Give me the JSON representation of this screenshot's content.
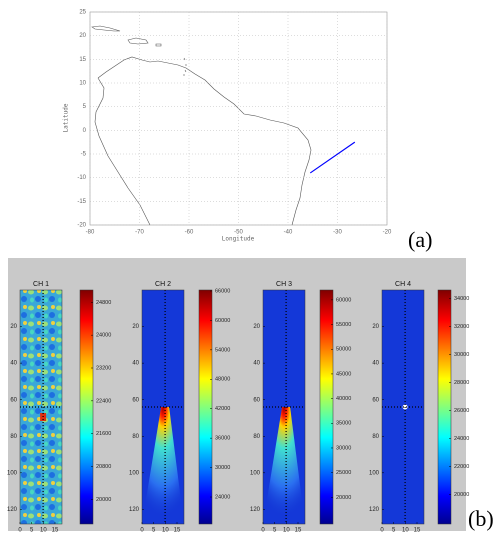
{
  "figure_labels": [
    "(a)",
    "(b)"
  ],
  "chart_data": [
    {
      "type": "line",
      "xlabel": "Longitude",
      "ylabel": "Latitude",
      "xlim": [
        -80,
        -20
      ],
      "xticks": [
        -80,
        -70,
        -60,
        -50,
        -40,
        -30,
        -20
      ],
      "ylim": [
        -20,
        25
      ],
      "yticks": [
        -20,
        -15,
        -10,
        -5,
        0,
        5,
        10,
        15,
        20,
        25
      ],
      "grid": true,
      "series": [
        {
          "color": "#0000ff",
          "x": [
            -35.5,
            -26.5
          ],
          "values": [
            -9,
            -2.5
          ]
        }
      ]
    },
    {
      "type": "heatmap",
      "title": "CH 1",
      "style": "speckle",
      "xlim": [
        0,
        18
      ],
      "xticks": [
        0,
        5,
        10,
        15
      ],
      "ylim": [
        0,
        128
      ],
      "yticks": [
        20,
        40,
        60,
        80,
        100,
        120
      ],
      "clim": [
        19400,
        25100
      ],
      "cticks": [
        20000,
        20800,
        21600,
        22400,
        23200,
        24000,
        24800
      ]
    },
    {
      "type": "heatmap",
      "title": "CH 2",
      "style": "plume",
      "xlim": [
        0,
        18
      ],
      "xticks": [
        0,
        5,
        10,
        15
      ],
      "ylim": [
        0,
        128
      ],
      "yticks": [
        20,
        40,
        60,
        80,
        100,
        120
      ],
      "clim": [
        18500,
        66200
      ],
      "cticks": [
        24000,
        30000,
        36000,
        42000,
        48000,
        54000,
        60000,
        66000
      ]
    },
    {
      "type": "heatmap",
      "title": "CH 3",
      "style": "plume",
      "xlim": [
        0,
        18
      ],
      "xticks": [
        0,
        5,
        10,
        15
      ],
      "ylim": [
        0,
        128
      ],
      "yticks": [
        20,
        40,
        60,
        80,
        100,
        120
      ],
      "clim": [
        14600,
        62000
      ],
      "cticks": [
        20000,
        25000,
        30000,
        35000,
        40000,
        45000,
        50000,
        55000,
        60000
      ]
    },
    {
      "type": "heatmap",
      "title": "CH 4",
      "style": "point",
      "xlim": [
        0,
        18
      ],
      "xticks": [
        0,
        5,
        10,
        15
      ],
      "ylim": [
        0,
        128
      ],
      "yticks": [
        20,
        40,
        60,
        80,
        100,
        120
      ],
      "clim": [
        17900,
        34600
      ],
      "cticks": [
        20000,
        22000,
        24000,
        26000,
        28000,
        30000,
        32000,
        34000
      ]
    }
  ]
}
